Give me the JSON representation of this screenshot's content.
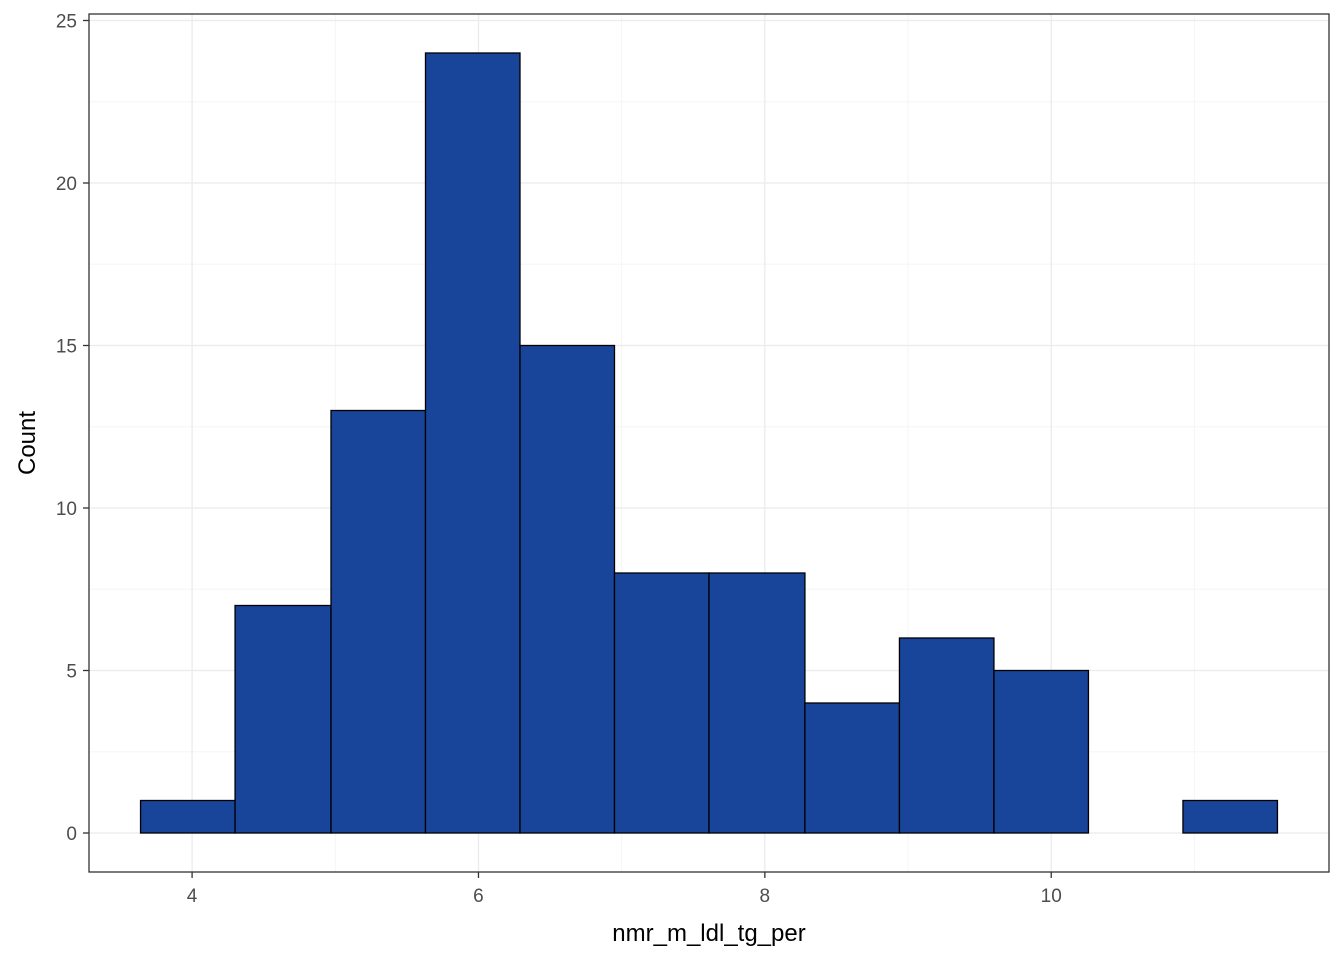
{
  "chart_data": {
    "type": "bar",
    "subtype": "histogram",
    "title": "",
    "xlabel": "nmr_m_ldl_tg_per",
    "ylabel": "Count",
    "xlim": [
      3.28,
      11.94
    ],
    "ylim": [
      -1.2,
      25.2
    ],
    "x_ticks": [
      4,
      6,
      8,
      10
    ],
    "y_ticks": [
      0,
      5,
      10,
      15,
      20,
      25
    ],
    "x_minor_ticks": [
      5,
      7,
      9,
      11
    ],
    "y_minor_ticks": [
      2.5,
      7.5,
      12.5,
      17.5,
      22.5
    ],
    "grid": true,
    "bins": [
      {
        "x0": 3.64,
        "x1": 4.3,
        "count": 1
      },
      {
        "x0": 4.3,
        "x1": 4.97,
        "count": 7
      },
      {
        "x0": 4.97,
        "x1": 5.63,
        "count": 13
      },
      {
        "x0": 5.63,
        "x1": 6.29,
        "count": 24
      },
      {
        "x0": 6.29,
        "x1": 6.95,
        "count": 15
      },
      {
        "x0": 6.95,
        "x1": 7.61,
        "count": 8
      },
      {
        "x0": 7.61,
        "x1": 8.28,
        "count": 8
      },
      {
        "x0": 8.28,
        "x1": 8.94,
        "count": 4
      },
      {
        "x0": 8.94,
        "x1": 9.6,
        "count": 6
      },
      {
        "x0": 9.6,
        "x1": 10.26,
        "count": 5
      },
      {
        "x0": 10.26,
        "x1": 10.92,
        "count": 0
      },
      {
        "x0": 10.92,
        "x1": 11.58,
        "count": 1
      }
    ],
    "colors": {
      "bar_fill": "#184499",
      "bar_stroke": "#000000",
      "grid_major": "#ebebeb",
      "grid_minor": "#f5f5f5",
      "panel_border": "#333333",
      "tick_text": "#4d4d4d"
    }
  }
}
